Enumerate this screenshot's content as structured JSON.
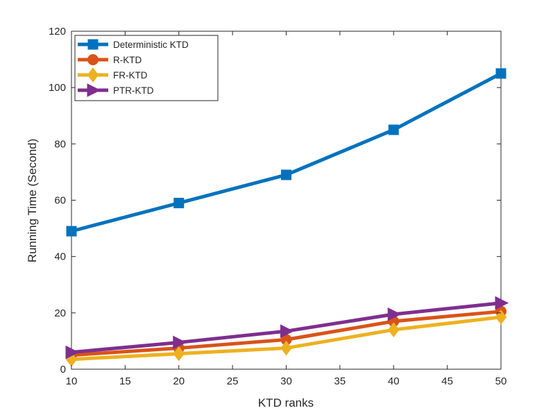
{
  "chart_data": {
    "type": "line",
    "title": "",
    "xlabel": "KTD ranks",
    "ylabel": "Running Time (Second)",
    "x": [
      10,
      20,
      30,
      40,
      50
    ],
    "xlim": [
      10,
      50
    ],
    "ylim": [
      0,
      120
    ],
    "xticks": [
      "10",
      "15",
      "20",
      "25",
      "30",
      "35",
      "40",
      "45",
      "50"
    ],
    "yticks": [
      "0",
      "20",
      "40",
      "60",
      "80",
      "100",
      "120"
    ],
    "grid": false,
    "legend_position": "top-left",
    "series": [
      {
        "name": "Deterministic KTD",
        "values": [
          49,
          59,
          69,
          85,
          105
        ],
        "color": "#0072BD",
        "marker": "square"
      },
      {
        "name": "R-KTD",
        "values": [
          5,
          7.5,
          10.5,
          17,
          20.5
        ],
        "color": "#D95319",
        "marker": "circle"
      },
      {
        "name": "FR-KTD",
        "values": [
          3.5,
          5.5,
          7.5,
          14,
          18.5
        ],
        "color": "#EDB120",
        "marker": "diamond"
      },
      {
        "name": "PTR-KTD",
        "values": [
          6,
          9.5,
          13.5,
          19.5,
          23.5
        ],
        "color": "#7E2F8E",
        "marker": "triangle-right"
      }
    ]
  }
}
